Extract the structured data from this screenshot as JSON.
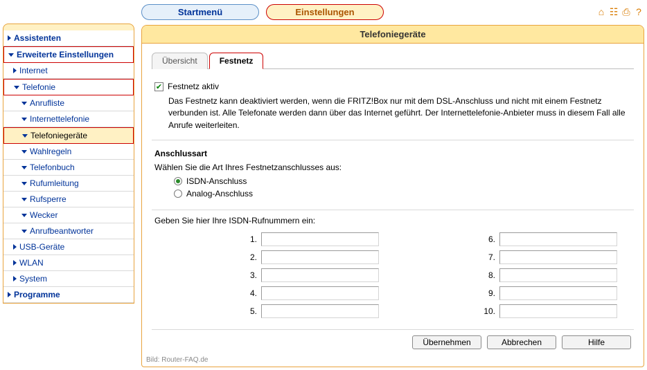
{
  "topbar": {
    "start_label": "Startmenü",
    "settings_label": "Einstellungen"
  },
  "icons": {
    "home": "home-icon",
    "sitemap": "sitemap-icon",
    "print": "print-icon",
    "help": "help-icon"
  },
  "sidebar": {
    "items": [
      {
        "label": "Assistenten",
        "level": 0,
        "arrow": "right"
      },
      {
        "label": "Erweiterte Einstellungen",
        "level": 0,
        "arrow": "down",
        "hl": "red"
      },
      {
        "label": "Internet",
        "level": 1,
        "arrow": "right"
      },
      {
        "label": "Telefonie",
        "level": 1,
        "arrow": "down",
        "hl": "red"
      },
      {
        "label": "Anrufliste",
        "level": 2,
        "arrow": "down"
      },
      {
        "label": "Internettelefonie",
        "level": 2,
        "arrow": "down"
      },
      {
        "label": "Telefoniegeräte",
        "level": 2,
        "arrow": "down",
        "hl": "yellow"
      },
      {
        "label": "Wahlregeln",
        "level": 2,
        "arrow": "down"
      },
      {
        "label": "Telefonbuch",
        "level": 2,
        "arrow": "down"
      },
      {
        "label": "Rufumleitung",
        "level": 2,
        "arrow": "down"
      },
      {
        "label": "Rufsperre",
        "level": 2,
        "arrow": "down"
      },
      {
        "label": "Wecker",
        "level": 2,
        "arrow": "down"
      },
      {
        "label": "Anrufbeantworter",
        "level": 2,
        "arrow": "down"
      },
      {
        "label": "USB-Geräte",
        "level": 1,
        "arrow": "right"
      },
      {
        "label": "WLAN",
        "level": 1,
        "arrow": "right"
      },
      {
        "label": "System",
        "level": 1,
        "arrow": "right"
      },
      {
        "label": "Programme",
        "level": 0,
        "arrow": "right"
      }
    ]
  },
  "panel": {
    "title": "Telefoniegeräte",
    "tabs": {
      "overview": "Übersicht",
      "landline": "Festnetz"
    },
    "checkbox_label": "Festnetz aktiv",
    "checkbox_checked": true,
    "description": "Das Festnetz kann deaktiviert werden, wenn die FRITZ!Box nur mit dem DSL-Anschluss und nicht mit einem Festnetz verbunden ist. Alle Telefonate werden dann über das Internet geführt. Der Internettelefonie-Anbieter muss in diesem Fall alle Anrufe weiterleiten.",
    "conn_heading": "Anschlussart",
    "conn_prompt": "Wählen Sie die Art Ihres Festnetzanschlusses aus:",
    "radios": {
      "isdn": "ISDN-Anschluss",
      "analog": "Analog-Anschluss"
    },
    "radio_selected": "isdn",
    "numbers_prompt": "Geben Sie hier Ihre ISDN-Rufnummern ein:",
    "number_labels": [
      "1.",
      "2.",
      "3.",
      "4.",
      "5.",
      "6.",
      "7.",
      "8.",
      "9.",
      "10."
    ],
    "number_values": [
      "",
      "",
      "",
      "",
      "",
      "",
      "",
      "",
      "",
      ""
    ],
    "buttons": {
      "apply": "Übernehmen",
      "cancel": "Abbrechen",
      "help": "Hilfe"
    },
    "footer": "Bild: Router-FAQ.de"
  },
  "colors": {
    "accent_bg": "#ffe8a0",
    "accent_border": "#e8a33d",
    "highlight_border": "#cc0000",
    "link": "#003399"
  }
}
